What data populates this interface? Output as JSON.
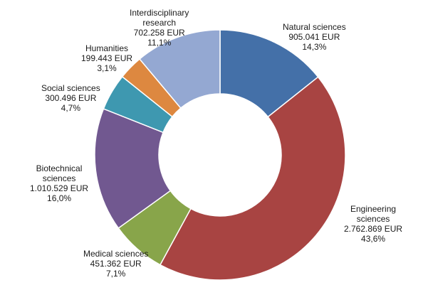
{
  "chart_data": {
    "type": "pie",
    "donut": true,
    "title": "",
    "slices": [
      {
        "name": "Natural sciences",
        "amount": "905.041 EUR",
        "value": 905041,
        "percent": "14,3%",
        "color": "#4470A8"
      },
      {
        "name": "Engineering sciences",
        "amount": "2.762.869 EUR",
        "value": 2762869,
        "percent": "43,6%",
        "color": "#A84442"
      },
      {
        "name": "Medical sciences",
        "amount": "451.362 EUR",
        "value": 451362,
        "percent": "7,1%",
        "color": "#88A54A"
      },
      {
        "name": "Biotechnical sciences",
        "amount": "1.010.529 EUR",
        "value": 1010529,
        "percent": "16,0%",
        "color": "#715890"
      },
      {
        "name": "Social sciences",
        "amount": "300.496 EUR",
        "value": 300496,
        "percent": "4,7%",
        "color": "#3E98B0"
      },
      {
        "name": "Humanities",
        "amount": "199.443 EUR",
        "value": 199443,
        "percent": "3,1%",
        "color": "#DD8840"
      },
      {
        "name": "Interdisciplinary research",
        "amount": "702.258 EUR",
        "value": 702258,
        "percent": "11,1%",
        "color": "#94A8D2"
      }
    ],
    "labels": [
      {
        "lines": [
          "Natural  sciences",
          "905.041 EUR",
          "14,3%"
        ]
      },
      {
        "lines": [
          "Engineering",
          "sciences",
          "2.762.869 EUR",
          "43,6%"
        ]
      },
      {
        "lines": [
          "Medical sciences",
          "451.362 EUR",
          "7,1%"
        ]
      },
      {
        "lines": [
          "Biotechnical",
          "sciences",
          "1.010.529 EUR",
          "16,0%"
        ]
      },
      {
        "lines": [
          "Social sciences",
          "300.496 EUR",
          "4,7%"
        ]
      },
      {
        "lines": [
          "Humanities",
          "199.443 EUR",
          "3,1%"
        ]
      },
      {
        "lines": [
          "Interdisciplinary",
          "research",
          "702.258 EUR",
          "11,1%"
        ]
      }
    ]
  }
}
